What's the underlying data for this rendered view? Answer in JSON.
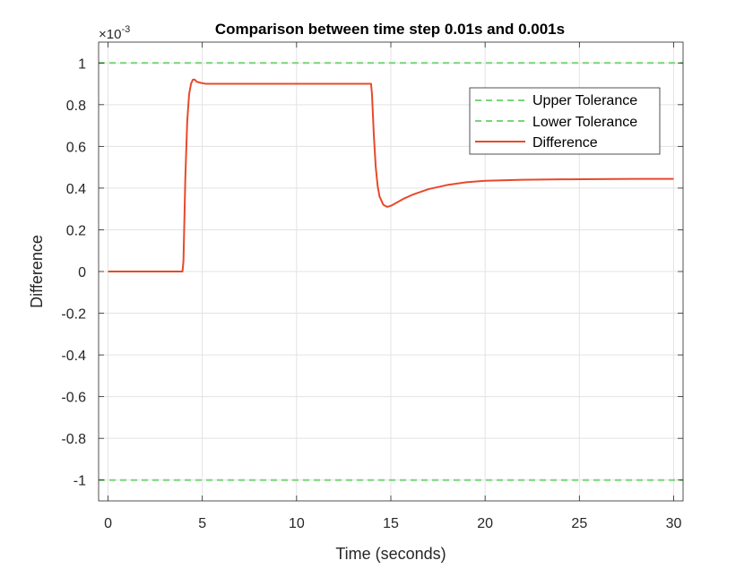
{
  "chart_data": {
    "type": "line",
    "title": "Comparison between time step 0.01s and 0.001s",
    "xlabel": "Time (seconds)",
    "ylabel": "Difference",
    "exponent_label": "×10",
    "exponent_power": "-3",
    "xlim": [
      -0.5,
      30.5
    ],
    "ylim": [
      -1.1,
      1.1
    ],
    "y_scale_factor": 0.001,
    "x_ticks": [
      0,
      5,
      10,
      15,
      20,
      25,
      30
    ],
    "x_tick_labels": [
      "0",
      "5",
      "10",
      "15",
      "20",
      "25",
      "30"
    ],
    "y_ticks": [
      1,
      0.8,
      0.6,
      0.4,
      0.2,
      0,
      -0.2,
      -0.4,
      -0.6,
      -0.8,
      -1
    ],
    "y_tick_labels": [
      "1",
      "0.8",
      "0.6",
      "0.4",
      "0.2",
      "0",
      "-0.2",
      "-0.4",
      "-0.6",
      "-0.8",
      "-1"
    ],
    "grid": true,
    "legend_position": "top-right",
    "series": [
      {
        "name": "Upper Tolerance",
        "style": "dashed",
        "color": "#77d677",
        "x": [
          -0.5,
          30.5
        ],
        "y": [
          1,
          1
        ]
      },
      {
        "name": "Lower Tolerance",
        "style": "dashed",
        "color": "#77d677",
        "x": [
          -0.5,
          30.5
        ],
        "y": [
          -1,
          -1
        ]
      },
      {
        "name": "Difference",
        "style": "solid",
        "color": "#e8492a",
        "x": [
          0,
          3.95,
          4.0,
          4.1,
          4.2,
          4.3,
          4.4,
          4.5,
          4.6,
          4.7,
          4.9,
          5.2,
          6,
          8,
          10,
          12,
          13.5,
          13.95,
          14.0,
          14.1,
          14.2,
          14.3,
          14.4,
          14.6,
          14.8,
          15.0,
          15.3,
          15.7,
          16.2,
          17,
          18,
          19,
          20,
          22,
          24,
          26,
          28,
          30
        ],
        "y": [
          0,
          0,
          0.05,
          0.45,
          0.72,
          0.85,
          0.9,
          0.92,
          0.92,
          0.91,
          0.905,
          0.9,
          0.9,
          0.9,
          0.9,
          0.9,
          0.9,
          0.9,
          0.85,
          0.65,
          0.5,
          0.41,
          0.36,
          0.32,
          0.31,
          0.315,
          0.33,
          0.35,
          0.37,
          0.395,
          0.415,
          0.428,
          0.435,
          0.44,
          0.442,
          0.443,
          0.444,
          0.444
        ]
      }
    ]
  }
}
